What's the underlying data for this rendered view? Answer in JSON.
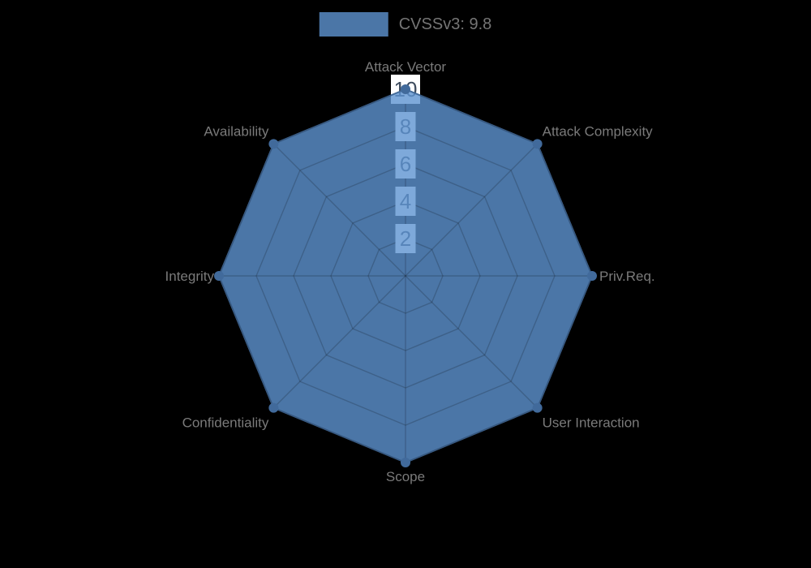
{
  "chart_data": {
    "type": "radar",
    "title": "",
    "legend": {
      "label": "CVSSv3: 9.8",
      "position": "top-center"
    },
    "categories": [
      "Attack Vector",
      "Attack Complexity",
      "Priv.Req.",
      "User Interaction",
      "Scope",
      "Confidentiality",
      "Integrity",
      "Availability"
    ],
    "series": [
      {
        "name": "CVSSv3: 9.8",
        "values": [
          10,
          10,
          10,
          10,
          10,
          10,
          10,
          10
        ]
      }
    ],
    "radial_axis": {
      "ticks": [
        2,
        4,
        6,
        8,
        10
      ],
      "range": [
        0,
        10
      ]
    },
    "angular_start": "top",
    "direction": "clockwise",
    "grid": true,
    "grid_shape": "linear",
    "colors": {
      "series_fill": "rgba(94,148,209,0.8)",
      "series_line": "#426a99",
      "marker": "#416a9b",
      "grid_line": "rgba(0,0,0,0.18)",
      "tick_box": "#ffffff",
      "tick_text": "#3e4c5e",
      "category_label": "#7a7a7a",
      "legend_text": "#757575",
      "background": "#000000"
    }
  }
}
